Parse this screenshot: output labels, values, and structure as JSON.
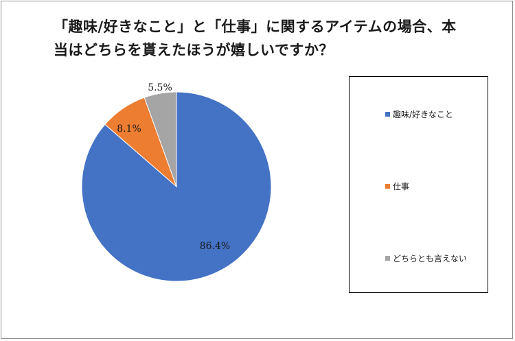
{
  "chart_data": {
    "type": "pie",
    "title_lines": [
      "「趣味/好きなこと」と「仕事」に関するアイテムの場合、本",
      "当はどちらを貰えたほうが嬉しいですか？"
    ],
    "slices": [
      {
        "label": "趣味/好きなこと",
        "value": 86.4,
        "display": "86.4%",
        "color": "#4472C4"
      },
      {
        "label": "仕事",
        "value": 8.1,
        "display": "8.1%",
        "color": "#ED7D31"
      },
      {
        "label": "どちらとも言えない",
        "value": 5.5,
        "display": "5.5%",
        "color": "#A5A5A5"
      }
    ],
    "legend_position": "right"
  }
}
